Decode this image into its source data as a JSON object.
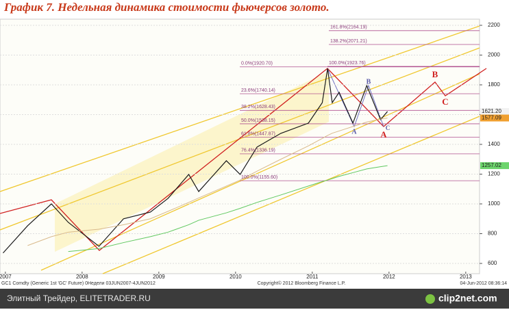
{
  "chart_data": {
    "type": "line",
    "title": "График 7.   Недельная динамика стоимости фьючерсов золото.",
    "x": [
      2007.47,
      2007.79,
      2008.1,
      2008.32,
      2008.72,
      2009.04,
      2009.39,
      2009.62,
      2009.89,
      2010.02,
      2010.38,
      2010.56,
      2010.78,
      2011.09,
      2011.45,
      2011.63,
      2011.7,
      2011.76,
      2011.85,
      2012.03,
      2012.21,
      2012.39,
      2012.48
    ],
    "series": [
      {
        "color": "#1a1a1a",
        "values": [
          670,
          853,
          1000,
          876,
          715,
          900,
          945,
          1037,
          1198,
          1083,
          1290,
          1198,
          1382,
          1474,
          1543,
          1680,
          1910,
          1680,
          1750,
          1543,
          1795,
          1566,
          1621
        ]
      },
      {
        "color": "#d9b98a",
        "values": [
          null,
          720,
          780,
          810,
          830,
          860,
          900,
          950,
          1010,
          1040,
          1120,
          1160,
          1220,
          1300,
          1390,
          1440,
          1460,
          1475,
          1490,
          1520,
          1550,
          1570,
          1577
        ]
      },
      {
        "color": "#5fc85f",
        "values": [
          null,
          null,
          null,
          680,
          700,
          740,
          780,
          810,
          860,
          890,
          940,
          970,
          1010,
          1060,
          1120,
          1150,
          1160,
          1170,
          1185,
          1210,
          1235,
          1250,
          1257
        ]
      }
    ],
    "xlim": [
      2007.43,
      2013.68
    ],
    "xticks": [
      {
        "value": 2007.5,
        "label": "2007"
      },
      {
        "value": 2008.5,
        "label": "2008"
      },
      {
        "value": 2009.5,
        "label": "2009"
      },
      {
        "value": 2010.5,
        "label": "2010"
      },
      {
        "value": 2011.5,
        "label": "2011"
      },
      {
        "value": 2012.5,
        "label": "2012"
      },
      {
        "value": 2013.5,
        "label": "2013"
      }
    ],
    "ylim": [
      600,
      2200
    ],
    "yticks": [
      600,
      800,
      1000,
      1200,
      1400,
      1600,
      1800,
      2000,
      2200
    ],
    "grid": true,
    "fib_levels": [
      {
        "label": "161.8%(2164.19)",
        "value": 2164.19
      },
      {
        "label": "138.2%(2071.21)",
        "value": 2071.21
      },
      {
        "label": "100.0%(1923.76)",
        "value": 1923.76
      },
      {
        "label": "0.0%(1920.70)",
        "value": 1920.7
      },
      {
        "label": "23.6%(1740.14)",
        "value": 1740.14
      },
      {
        "label": "38.2%(1628.43)",
        "value": 1628.43
      },
      {
        "label": "50.0%(1538.15)",
        "value": 1538.15
      },
      {
        "label": "61.8%(1447.87)",
        "value": 1447.87
      },
      {
        "label": "76.4%(1336.19)",
        "value": 1336.19
      },
      {
        "label": "100.0%(1155.60)",
        "value": 1155.6
      }
    ],
    "fib_color": "#b0508f",
    "price_tags": [
      {
        "value": 1621.2,
        "label": "1621.20",
        "color": "#f2f2f2"
      },
      {
        "value": 1577.09,
        "label": "1577.09",
        "color": "#f0a030"
      },
      {
        "value": 1257.02,
        "label": "1257.02",
        "color": "#6cd46c"
      }
    ],
    "wave_labels": [
      "A",
      "B",
      "C",
      "A",
      "B",
      "C"
    ],
    "footer": {
      "left": "GC1 Comdty (Generic 1st 'GC' Future) 0Недели 03JUN2007-4JUN2012",
      "center": "Copyright© 2012 Bloomberg Finance L.P.",
      "right": "04-Jun-2012 08:36:14"
    }
  },
  "caption": {
    "text": "Элитный Трейдер, ELITETRADER.RU",
    "logo": "clip2net.com"
  }
}
